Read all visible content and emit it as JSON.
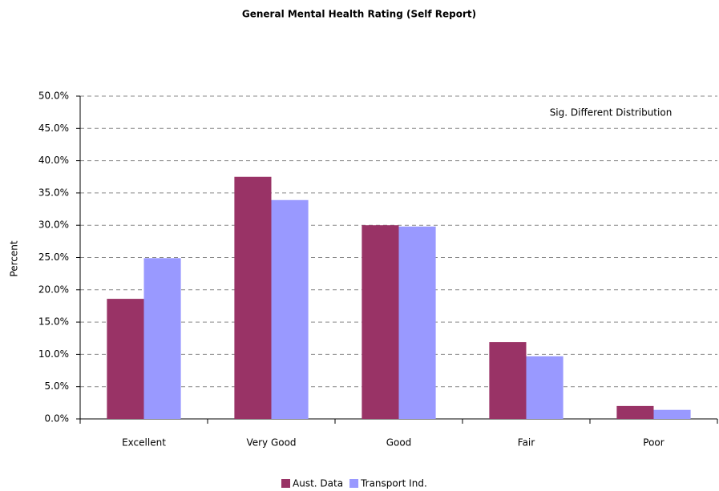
{
  "chart_data": {
    "type": "bar",
    "title": "General Mental Health Rating (Self Report)",
    "y_label": "Percent",
    "annotation": "Sig. Different Distribution",
    "categories": [
      "Excellent",
      "Very Good",
      "Good",
      "Fair",
      "Poor"
    ],
    "series": [
      {
        "name": "Aust. Data",
        "color": "#993366",
        "values": [
          18.6,
          37.5,
          30.0,
          11.9,
          2.0
        ]
      },
      {
        "name": "Transport Ind.",
        "color": "#9999ff",
        "values": [
          24.9,
          33.9,
          29.8,
          9.7,
          1.4
        ]
      }
    ],
    "ylim": [
      0,
      50
    ],
    "yticks": [
      {
        "value": 0,
        "label": "0.0%"
      },
      {
        "value": 5,
        "label": "5.0%"
      },
      {
        "value": 10,
        "label": "10.0%"
      },
      {
        "value": 15,
        "label": "15.0%"
      },
      {
        "value": 20,
        "label": "20.0%"
      },
      {
        "value": 25,
        "label": "25.0%"
      },
      {
        "value": 30,
        "label": "30.0%"
      },
      {
        "value": 35,
        "label": "35.0%"
      },
      {
        "value": 40,
        "label": "40.0%"
      },
      {
        "value": 45,
        "label": "45.0%"
      },
      {
        "value": 50,
        "label": "50.0%"
      }
    ],
    "grid": true,
    "legend": "bottom"
  }
}
